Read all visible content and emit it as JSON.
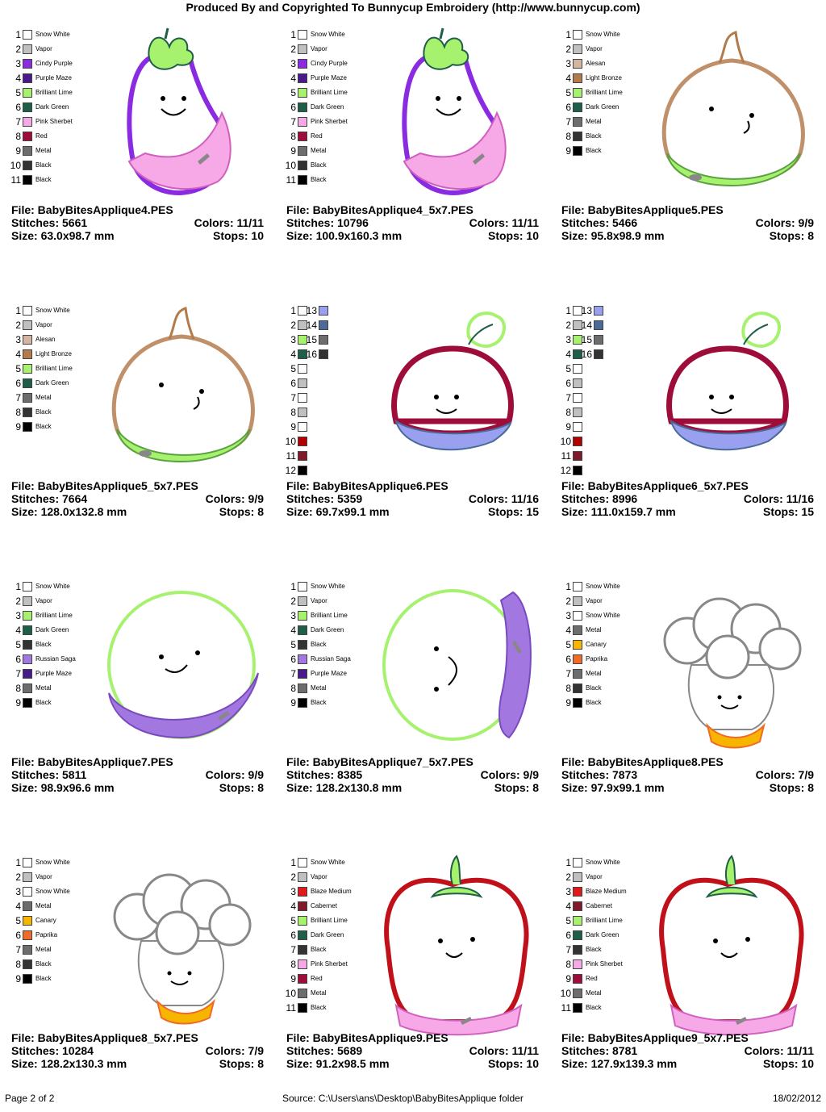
{
  "header": "Produced By and Copyrighted To Bunnycup Embroidery (http://www.bunnycup.com)",
  "colors": {
    "snow_white": "#ffffff",
    "vapor": "#c0c0c0",
    "cindy_purple": "#8a2be2",
    "purple_maze": "#4b1a8a",
    "brilliant_lime": "#a6f26e",
    "dark_green": "#1f5e47",
    "pink_sherbet": "#f7a8e6",
    "red": "#9e0d3a",
    "metal": "#6d6d6d",
    "black": "#000000",
    "alesan": "#d4b5a0",
    "light_bronze": "#b37a4a",
    "russian_saga": "#a277e0",
    "canary": "#f7b500",
    "paprika": "#f06a2a",
    "blaze_medium": "#e01a1a",
    "cabernet": "#7e1a2a"
  },
  "designs": [
    {
      "file": "File: BabyBitesApplique4.PES",
      "stitches": "Stitches: 5661",
      "colors": "Colors: 11/11",
      "size": "Size: 63.0x98.7 mm",
      "stops": "Stops: 10",
      "art": "eggplant",
      "palette": [
        {
          "n": "1",
          "name": "Snow White",
          "c": "#ffffff"
        },
        {
          "n": "2",
          "name": "Vapor",
          "c": "#c0c0c0"
        },
        {
          "n": "3",
          "name": "Cindy Purple",
          "c": "#8a2be2"
        },
        {
          "n": "4",
          "name": "Purple Maze",
          "c": "#4b1a8a"
        },
        {
          "n": "5",
          "name": "Brilliant Lime",
          "c": "#a6f26e"
        },
        {
          "n": "6",
          "name": "Dark Green",
          "c": "#1f5e47"
        },
        {
          "n": "7",
          "name": "Pink Sherbet",
          "c": "#f7a8e6"
        },
        {
          "n": "8",
          "name": "Red",
          "c": "#9e0d3a"
        },
        {
          "n": "9",
          "name": "Metal",
          "c": "#6d6d6d"
        },
        {
          "n": "10",
          "name": "Black",
          "c": "#333333"
        },
        {
          "n": "11",
          "name": "Black",
          "c": "#000000"
        }
      ]
    },
    {
      "file": "File: BabyBitesApplique4_5x7.PES",
      "stitches": "Stitches: 10796",
      "colors": "Colors: 11/11",
      "size": "Size: 100.9x160.3 mm",
      "stops": "Stops: 10",
      "art": "eggplant",
      "palette": [
        {
          "n": "1",
          "name": "Snow White",
          "c": "#ffffff"
        },
        {
          "n": "2",
          "name": "Vapor",
          "c": "#c0c0c0"
        },
        {
          "n": "3",
          "name": "Cindy Purple",
          "c": "#8a2be2"
        },
        {
          "n": "4",
          "name": "Purple Maze",
          "c": "#4b1a8a"
        },
        {
          "n": "5",
          "name": "Brilliant Lime",
          "c": "#a6f26e"
        },
        {
          "n": "6",
          "name": "Dark Green",
          "c": "#1f5e47"
        },
        {
          "n": "7",
          "name": "Pink Sherbet",
          "c": "#f7a8e6"
        },
        {
          "n": "8",
          "name": "Red",
          "c": "#9e0d3a"
        },
        {
          "n": "9",
          "name": "Metal",
          "c": "#6d6d6d"
        },
        {
          "n": "10",
          "name": "Black",
          "c": "#333333"
        },
        {
          "n": "11",
          "name": "Black",
          "c": "#000000"
        }
      ]
    },
    {
      "file": "File: BabyBitesApplique5.PES",
      "stitches": "Stitches: 5466",
      "colors": "Colors: 9/9",
      "size": "Size: 95.8x98.9 mm",
      "stops": "Stops: 8",
      "art": "onion",
      "palette": [
        {
          "n": "1",
          "name": "Snow White",
          "c": "#ffffff"
        },
        {
          "n": "2",
          "name": "Vapor",
          "c": "#c0c0c0"
        },
        {
          "n": "3",
          "name": "Alesan",
          "c": "#d4b5a0"
        },
        {
          "n": "4",
          "name": "Light Bronze",
          "c": "#b37a4a"
        },
        {
          "n": "5",
          "name": "Brilliant Lime",
          "c": "#a6f26e"
        },
        {
          "n": "6",
          "name": "Dark Green",
          "c": "#1f5e47"
        },
        {
          "n": "7",
          "name": "Metal",
          "c": "#6d6d6d"
        },
        {
          "n": "8",
          "name": "Black",
          "c": "#333333"
        },
        {
          "n": "9",
          "name": "Black",
          "c": "#000000"
        }
      ]
    },
    {
      "file": "File: BabyBitesApplique5_5x7.PES",
      "stitches": "Stitches: 7664",
      "colors": "Colors: 9/9",
      "size": "Size: 128.0x132.8 mm",
      "stops": "Stops: 8",
      "art": "onion",
      "palette": [
        {
          "n": "1",
          "name": "Snow White",
          "c": "#ffffff"
        },
        {
          "n": "2",
          "name": "Vapor",
          "c": "#c0c0c0"
        },
        {
          "n": "3",
          "name": "Alesan",
          "c": "#d4b5a0"
        },
        {
          "n": "4",
          "name": "Light Bronze",
          "c": "#b37a4a"
        },
        {
          "n": "5",
          "name": "Brilliant Lime",
          "c": "#a6f26e"
        },
        {
          "n": "6",
          "name": "Dark Green",
          "c": "#1f5e47"
        },
        {
          "n": "7",
          "name": "Metal",
          "c": "#6d6d6d"
        },
        {
          "n": "8",
          "name": "Black",
          "c": "#333333"
        },
        {
          "n": "9",
          "name": "Black",
          "c": "#000000"
        }
      ]
    },
    {
      "file": "File: BabyBitesApplique6.PES",
      "stitches": "Stitches: 5359",
      "colors": "Colors: 11/16",
      "size": "Size: 69.7x99.1 mm",
      "stops": "Stops: 15",
      "art": "radish",
      "palette": [
        {
          "n": "1",
          "c": "#ffffff"
        },
        {
          "n": "2",
          "c": "#c0c0c0"
        },
        {
          "n": "3",
          "c": "#a6f26e"
        },
        {
          "n": "4",
          "c": "#1f5e47"
        },
        {
          "n": "5",
          "c": "#ffffff"
        },
        {
          "n": "6",
          "c": "#c0c0c0"
        },
        {
          "n": "7",
          "c": "#ffffff"
        },
        {
          "n": "8",
          "c": "#c0c0c0"
        },
        {
          "n": "9",
          "c": "#ffffff"
        },
        {
          "n": "10",
          "c": "#b00000"
        },
        {
          "n": "11",
          "c": "#7e1a2a"
        },
        {
          "n": "12",
          "c": "#000000"
        }
      ],
      "palette2": [
        {
          "n": "13",
          "c": "#9aa0f0"
        },
        {
          "n": "14",
          "c": "#4a6a9a"
        },
        {
          "n": "15",
          "c": "#6d6d6d"
        },
        {
          "n": "16",
          "c": "#333333"
        }
      ]
    },
    {
      "file": "File: BabyBitesApplique6_5x7.PES",
      "stitches": "Stitches: 8996",
      "colors": "Colors: 11/16",
      "size": "Size: 111.0x159.7 mm",
      "stops": "Stops: 15",
      "art": "radish",
      "palette": [
        {
          "n": "1",
          "c": "#ffffff"
        },
        {
          "n": "2",
          "c": "#c0c0c0"
        },
        {
          "n": "3",
          "c": "#a6f26e"
        },
        {
          "n": "4",
          "c": "#1f5e47"
        },
        {
          "n": "5",
          "c": "#ffffff"
        },
        {
          "n": "6",
          "c": "#c0c0c0"
        },
        {
          "n": "7",
          "c": "#ffffff"
        },
        {
          "n": "8",
          "c": "#c0c0c0"
        },
        {
          "n": "9",
          "c": "#ffffff"
        },
        {
          "n": "10",
          "c": "#b00000"
        },
        {
          "n": "11",
          "c": "#7e1a2a"
        },
        {
          "n": "12",
          "c": "#000000"
        }
      ],
      "palette2": [
        {
          "n": "13",
          "c": "#9aa0f0"
        },
        {
          "n": "14",
          "c": "#4a6a9a"
        },
        {
          "n": "15",
          "c": "#6d6d6d"
        },
        {
          "n": "16",
          "c": "#333333"
        }
      ]
    },
    {
      "file": "File: BabyBitesApplique7.PES",
      "stitches": "Stitches: 5811",
      "colors": "Colors: 9/9",
      "size": "Size: 98.9x96.6 mm",
      "stops": "Stops: 8",
      "art": "pea",
      "palette": [
        {
          "n": "1",
          "name": "Snow White",
          "c": "#ffffff"
        },
        {
          "n": "2",
          "name": "Vapor",
          "c": "#c0c0c0"
        },
        {
          "n": "3",
          "name": "Brilliant Lime",
          "c": "#a6f26e"
        },
        {
          "n": "4",
          "name": "Dark Green",
          "c": "#1f5e47"
        },
        {
          "n": "5",
          "name": "Black",
          "c": "#333333"
        },
        {
          "n": "6",
          "name": "Russian Saga",
          "c": "#a277e0"
        },
        {
          "n": "7",
          "name": "Purple Maze",
          "c": "#4b1a8a"
        },
        {
          "n": "8",
          "name": "Metal",
          "c": "#6d6d6d"
        },
        {
          "n": "9",
          "name": "Black",
          "c": "#000000"
        }
      ]
    },
    {
      "file": "File: BabyBitesApplique7_5x7.PES",
      "stitches": "Stitches: 8385",
      "colors": "Colors: 9/9",
      "size": "Size: 128.2x130.8 mm",
      "stops": "Stops: 8",
      "art": "pea2",
      "palette": [
        {
          "n": "1",
          "name": "Snow White",
          "c": "#ffffff"
        },
        {
          "n": "2",
          "name": "Vapor",
          "c": "#c0c0c0"
        },
        {
          "n": "3",
          "name": "Brilliant Lime",
          "c": "#a6f26e"
        },
        {
          "n": "4",
          "name": "Dark Green",
          "c": "#1f5e47"
        },
        {
          "n": "5",
          "name": "Black",
          "c": "#333333"
        },
        {
          "n": "6",
          "name": "Russian Saga",
          "c": "#a277e0"
        },
        {
          "n": "7",
          "name": "Purple Maze",
          "c": "#4b1a8a"
        },
        {
          "n": "8",
          "name": "Metal",
          "c": "#6d6d6d"
        },
        {
          "n": "9",
          "name": "Black",
          "c": "#000000"
        }
      ]
    },
    {
      "file": "File: BabyBitesApplique8.PES",
      "stitches": "Stitches: 7873",
      "colors": "Colors: 7/9",
      "size": "Size: 97.9x99.1 mm",
      "stops": "Stops: 8",
      "art": "cauliflower",
      "palette": [
        {
          "n": "1",
          "name": "Snow White",
          "c": "#ffffff"
        },
        {
          "n": "2",
          "name": "Vapor",
          "c": "#c0c0c0"
        },
        {
          "n": "3",
          "name": "Snow White",
          "c": "#ffffff"
        },
        {
          "n": "4",
          "name": "Metal",
          "c": "#6d6d6d"
        },
        {
          "n": "5",
          "name": "Canary",
          "c": "#f7b500"
        },
        {
          "n": "6",
          "name": "Paprika",
          "c": "#f06a2a"
        },
        {
          "n": "7",
          "name": "Metal",
          "c": "#6d6d6d"
        },
        {
          "n": "8",
          "name": "Black",
          "c": "#333333"
        },
        {
          "n": "9",
          "name": "Black",
          "c": "#000000"
        }
      ]
    },
    {
      "file": "File: BabyBitesApplique8_5x7.PES",
      "stitches": "Stitches: 10284",
      "colors": "Colors: 7/9",
      "size": "Size: 128.2x130.3 mm",
      "stops": "Stops: 8",
      "art": "cauliflower",
      "palette": [
        {
          "n": "1",
          "name": "Snow White",
          "c": "#ffffff"
        },
        {
          "n": "2",
          "name": "Vapor",
          "c": "#c0c0c0"
        },
        {
          "n": "3",
          "name": "Snow White",
          "c": "#ffffff"
        },
        {
          "n": "4",
          "name": "Metal",
          "c": "#6d6d6d"
        },
        {
          "n": "5",
          "name": "Canary",
          "c": "#f7b500"
        },
        {
          "n": "6",
          "name": "Paprika",
          "c": "#f06a2a"
        },
        {
          "n": "7",
          "name": "Metal",
          "c": "#6d6d6d"
        },
        {
          "n": "8",
          "name": "Black",
          "c": "#333333"
        },
        {
          "n": "9",
          "name": "Black",
          "c": "#000000"
        }
      ]
    },
    {
      "file": "File: BabyBitesApplique9.PES",
      "stitches": "Stitches: 5689",
      "colors": "Colors: 11/11",
      "size": "Size: 91.2x98.5 mm",
      "stops": "Stops: 10",
      "art": "pepper",
      "palette": [
        {
          "n": "1",
          "name": "Snow White",
          "c": "#ffffff"
        },
        {
          "n": "2",
          "name": "Vapor",
          "c": "#c0c0c0"
        },
        {
          "n": "3",
          "name": "Blaze Medium",
          "c": "#e01a1a"
        },
        {
          "n": "4",
          "name": "Cabernet",
          "c": "#7e1a2a"
        },
        {
          "n": "5",
          "name": "Brilliant Lime",
          "c": "#a6f26e"
        },
        {
          "n": "6",
          "name": "Dark Green",
          "c": "#1f5e47"
        },
        {
          "n": "7",
          "name": "Black",
          "c": "#333333"
        },
        {
          "n": "8",
          "name": "Pink Sherbet",
          "c": "#f7a8e6"
        },
        {
          "n": "9",
          "name": "Red",
          "c": "#9e0d3a"
        },
        {
          "n": "10",
          "name": "Metal",
          "c": "#6d6d6d"
        },
        {
          "n": "11",
          "name": "Black",
          "c": "#000000"
        }
      ]
    },
    {
      "file": "File: BabyBitesApplique9_5x7.PES",
      "stitches": "Stitches: 8781",
      "colors": "Colors: 11/11",
      "size": "Size: 127.9x139.3 mm",
      "stops": "Stops: 10",
      "art": "pepper",
      "palette": [
        {
          "n": "1",
          "name": "Snow White",
          "c": "#ffffff"
        },
        {
          "n": "2",
          "name": "Vapor",
          "c": "#c0c0c0"
        },
        {
          "n": "3",
          "name": "Blaze Medium",
          "c": "#e01a1a"
        },
        {
          "n": "4",
          "name": "Cabernet",
          "c": "#7e1a2a"
        },
        {
          "n": "5",
          "name": "Brilliant Lime",
          "c": "#a6f26e"
        },
        {
          "n": "6",
          "name": "Dark Green",
          "c": "#1f5e47"
        },
        {
          "n": "7",
          "name": "Black",
          "c": "#333333"
        },
        {
          "n": "8",
          "name": "Pink Sherbet",
          "c": "#f7a8e6"
        },
        {
          "n": "9",
          "name": "Red",
          "c": "#9e0d3a"
        },
        {
          "n": "10",
          "name": "Metal",
          "c": "#6d6d6d"
        },
        {
          "n": "11",
          "name": "Black",
          "c": "#000000"
        }
      ]
    }
  ],
  "footer": {
    "page": "Page 2 of 2",
    "source": "Source: C:\\Users\\ans\\Desktop\\BabyBitesApplique folder",
    "date": "18/02/2012"
  }
}
